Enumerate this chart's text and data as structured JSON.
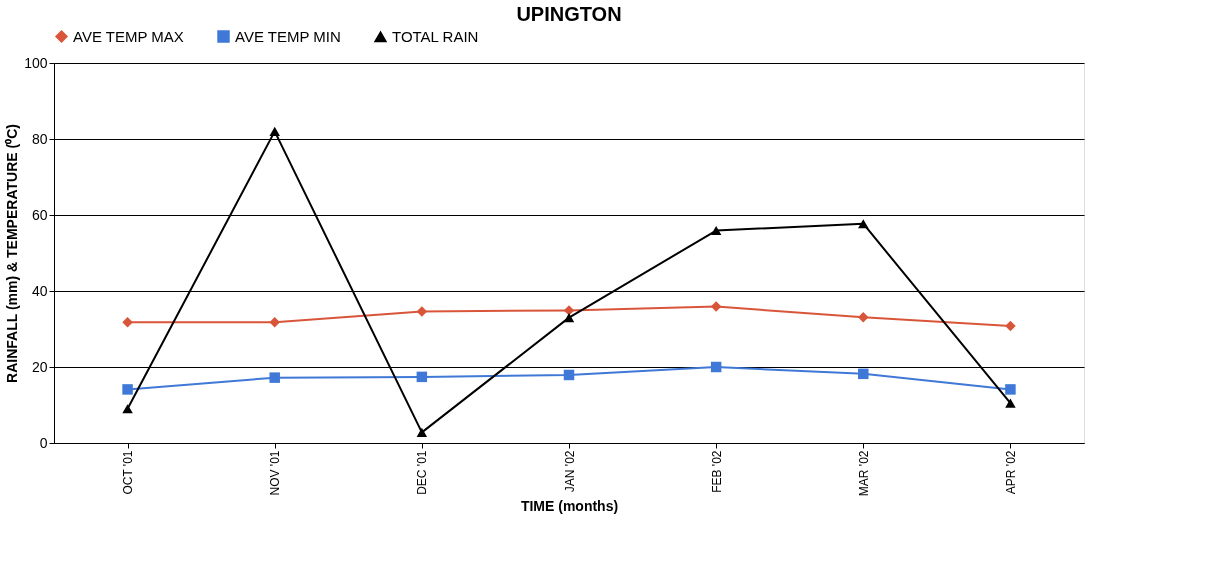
{
  "chart_data": {
    "type": "line",
    "title": "UPINGTON",
    "xlabel": "TIME (months)",
    "ylabel": "RAINFALL (mm) & TEMPERATURE (⁰C)",
    "categories": [
      "OCT '01",
      "NOV '01",
      "DEC '01",
      "JAN '02",
      "FEB '02",
      "MAR '02",
      "APR '02"
    ],
    "series": [
      {
        "name": "AVE TEMP MAX",
        "color": "#d9553a",
        "marker": "diamond",
        "values": [
          31.8,
          31.8,
          34.6,
          34.9,
          35.9,
          33.1,
          30.8
        ]
      },
      {
        "name": "AVE TEMP MIN",
        "color": "#3f78d6",
        "marker": "square",
        "values": [
          14.1,
          17.2,
          17.4,
          17.9,
          20.0,
          18.2,
          14.1
        ]
      },
      {
        "name": "TOTAL RAIN",
        "color": "#000000",
        "marker": "triangle",
        "values": [
          9.0,
          82.0,
          2.8,
          33.0,
          55.9,
          57.7,
          10.5
        ]
      }
    ],
    "ylim": [
      0,
      100
    ],
    "yticks": [
      0,
      20,
      40,
      60,
      80,
      100
    ],
    "grid": "y",
    "legend": "top",
    "line_style": "solid"
  }
}
